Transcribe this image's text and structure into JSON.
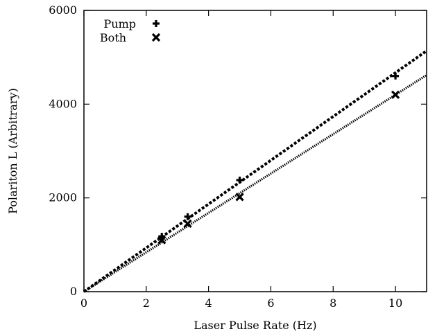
{
  "chart_data": {
    "type": "scatter",
    "xlabel": "Laser Pulse Rate (Hz)",
    "ylabel": "Polariton L (Arbitrary)",
    "xlim": [
      0,
      11
    ],
    "ylim": [
      0,
      6000
    ],
    "x_ticks": [
      0,
      2,
      4,
      6,
      8,
      10
    ],
    "y_ticks": [
      0,
      2000,
      4000,
      6000
    ],
    "grid": false,
    "legend_position": "top-left",
    "series": [
      {
        "name": "Pump",
        "marker": "plus",
        "x": [
          2.5,
          3.33,
          5.0,
          10.0
        ],
        "y": [
          1180,
          1600,
          2380,
          4600
        ],
        "fit": {
          "style": "dashed",
          "slope": 467,
          "intercept": 0
        }
      },
      {
        "name": "Both",
        "marker": "cross",
        "x": [
          2.5,
          3.33,
          5.0,
          10.0
        ],
        "y": [
          1100,
          1450,
          2020,
          4200
        ],
        "fit": {
          "style": "dotted",
          "slope": 420,
          "intercept": 0
        }
      }
    ],
    "color": "#000000"
  }
}
